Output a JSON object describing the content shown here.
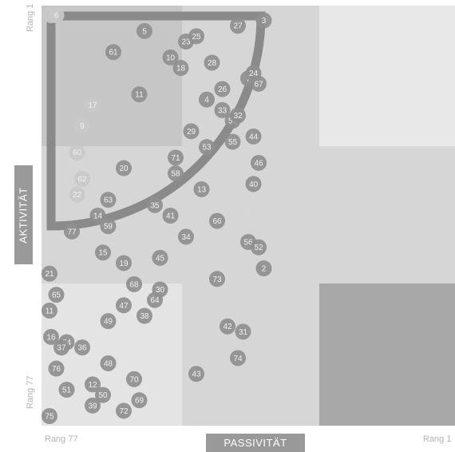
{
  "chart_data": {
    "type": "scatter",
    "title": "",
    "xlabel": "PASSIVITÄT",
    "ylabel": "AKTIVITÄT",
    "x_range_labels": {
      "left": "Rang 77",
      "right": "Rang 1"
    },
    "y_range_labels": {
      "top": "Rang 1",
      "bottom": "Rang 77"
    },
    "xlim": [
      77,
      1
    ],
    "ylim": [
      77,
      1
    ],
    "grid": false,
    "legend": "none",
    "colors": {
      "marker_fill": "#8f8f8f",
      "marker_fill_light": "#c9c9c9",
      "marker_text": "#f2f2f2",
      "highlight_arc": "#8a8a8a",
      "axis_box": "#999999",
      "corner_label": "#b3b3b3",
      "zone_top_right": "#e8e8e8",
      "zone_top_left": "#c6c6c6",
      "zone_center": "#d6d6d6",
      "zone_bottom_left": "#e4e4e4",
      "zone_bottom_right": "#a8a8a8"
    },
    "points": [
      {
        "label": "1",
        "x": 77,
        "y": 1
      },
      {
        "label": "6",
        "x": 76,
        "y": 1
      },
      {
        "label": "5",
        "x": 59,
        "y": 4
      },
      {
        "label": "61",
        "x": 65,
        "y": 8
      },
      {
        "label": "10",
        "x": 54,
        "y": 9
      },
      {
        "label": "23",
        "x": 51,
        "y": 6
      },
      {
        "label": "25",
        "x": 49,
        "y": 5
      },
      {
        "label": "18",
        "x": 52,
        "y": 11
      },
      {
        "label": "27",
        "x": 41,
        "y": 3
      },
      {
        "label": "3",
        "x": 36,
        "y": 2
      },
      {
        "label": "28",
        "x": 46,
        "y": 10
      },
      {
        "label": "26",
        "x": 44,
        "y": 15
      },
      {
        "label": "7",
        "x": 39,
        "y": 13
      },
      {
        "label": "24",
        "x": 38,
        "y": 12
      },
      {
        "label": "67",
        "x": 37,
        "y": 14
      },
      {
        "label": "4",
        "x": 47,
        "y": 17
      },
      {
        "label": "33",
        "x": 44,
        "y": 19
      },
      {
        "label": "57",
        "x": 42,
        "y": 21
      },
      {
        "label": "32",
        "x": 41,
        "y": 20
      },
      {
        "label": "17",
        "x": 69,
        "y": 18
      },
      {
        "label": "9",
        "x": 71,
        "y": 22
      },
      {
        "label": "11",
        "x": 60,
        "y": 16
      },
      {
        "label": "29",
        "x": 50,
        "y": 23
      },
      {
        "label": "53",
        "x": 47,
        "y": 26
      },
      {
        "label": "55",
        "x": 42,
        "y": 25
      },
      {
        "label": "44",
        "x": 38,
        "y": 24
      },
      {
        "label": "60",
        "x": 72,
        "y": 27
      },
      {
        "label": "71",
        "x": 53,
        "y": 28
      },
      {
        "label": "58",
        "x": 53,
        "y": 31
      },
      {
        "label": "46",
        "x": 37,
        "y": 29
      },
      {
        "label": "62",
        "x": 71,
        "y": 32
      },
      {
        "label": "20",
        "x": 63,
        "y": 30
      },
      {
        "label": "40",
        "x": 38,
        "y": 33
      },
      {
        "label": "22",
        "x": 72,
        "y": 35
      },
      {
        "label": "13",
        "x": 48,
        "y": 34
      },
      {
        "label": "63",
        "x": 66,
        "y": 36
      },
      {
        "label": "14",
        "x": 68,
        "y": 39
      },
      {
        "label": "35",
        "x": 57,
        "y": 37
      },
      {
        "label": "41",
        "x": 54,
        "y": 39
      },
      {
        "label": "66",
        "x": 45,
        "y": 40
      },
      {
        "label": "59",
        "x": 66,
        "y": 41
      },
      {
        "label": "77",
        "x": 73,
        "y": 42
      },
      {
        "label": "34",
        "x": 51,
        "y": 43
      },
      {
        "label": "56",
        "x": 39,
        "y": 44
      },
      {
        "label": "52",
        "x": 37,
        "y": 45
      },
      {
        "label": "15",
        "x": 67,
        "y": 46
      },
      {
        "label": "19",
        "x": 63,
        "y": 48
      },
      {
        "label": "45",
        "x": 56,
        "y": 47
      },
      {
        "label": "2",
        "x": 36,
        "y": 49
      },
      {
        "label": "21",
        "x": 79,
        "y": 50
      },
      {
        "label": "73",
        "x": 45,
        "y": 51
      },
      {
        "label": "68",
        "x": 61,
        "y": 52
      },
      {
        "label": "30",
        "x": 56,
        "y": 53
      },
      {
        "label": "65",
        "x": 76,
        "y": 54
      },
      {
        "label": "64",
        "x": 57,
        "y": 55
      },
      {
        "label": "47",
        "x": 63,
        "y": 56
      },
      {
        "label": "11",
        "x": 79,
        "y": 57
      },
      {
        "label": "38",
        "x": 59,
        "y": 58
      },
      {
        "label": "49",
        "x": 66,
        "y": 59
      },
      {
        "label": "42",
        "x": 43,
        "y": 60
      },
      {
        "label": "31",
        "x": 40,
        "y": 61
      },
      {
        "label": "16",
        "x": 77,
        "y": 62
      },
      {
        "label": "54",
        "x": 74,
        "y": 63
      },
      {
        "label": "37",
        "x": 75,
        "y": 64
      },
      {
        "label": "36",
        "x": 71,
        "y": 64
      },
      {
        "label": "74",
        "x": 41,
        "y": 66
      },
      {
        "label": "48",
        "x": 66,
        "y": 67
      },
      {
        "label": "76",
        "x": 76,
        "y": 68
      },
      {
        "label": "43",
        "x": 49,
        "y": 69
      },
      {
        "label": "70",
        "x": 61,
        "y": 70
      },
      {
        "label": "12",
        "x": 69,
        "y": 71
      },
      {
        "label": "51",
        "x": 74,
        "y": 72
      },
      {
        "label": "50",
        "x": 67,
        "y": 73
      },
      {
        "label": "69",
        "x": 60,
        "y": 74
      },
      {
        "label": "39",
        "x": 69,
        "y": 75
      },
      {
        "label": "72",
        "x": 63,
        "y": 76
      },
      {
        "label": "75",
        "x": 78,
        "y": 77
      }
    ]
  }
}
